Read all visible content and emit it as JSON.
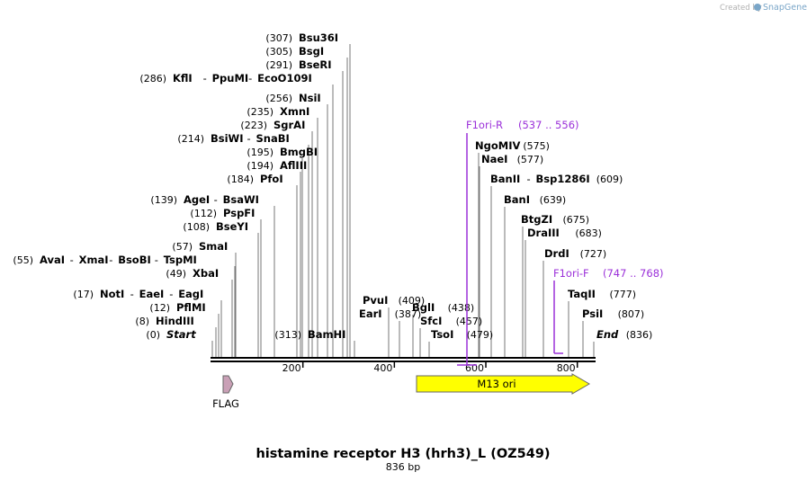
{
  "credit": {
    "prefix": "Created by",
    "brand": "SnapGene"
  },
  "title": "histamine receptor H3 (hrh3)_L (OZ549)",
  "subtitle": "836 bp",
  "sequence_length": 836,
  "axis_ticks": [
    200,
    400,
    600,
    800
  ],
  "colors": {
    "backbone": "#000000",
    "feature_m13": "#ffff00",
    "feature_flag": "#c9a0b6",
    "primer": "#9b30d9",
    "feature_stroke": "#666666"
  },
  "enzymes_left": [
    {
      "pos": 307,
      "parts": [
        "Bsu36I"
      ]
    },
    {
      "pos": 305,
      "parts": [
        "BsgI"
      ]
    },
    {
      "pos": 291,
      "parts": [
        "BseRI"
      ]
    },
    {
      "pos": 286,
      "parts": [
        "KflI",
        "PpuMI",
        "EcoO109I"
      ]
    },
    {
      "pos": 256,
      "parts": [
        "NsiI"
      ]
    },
    {
      "pos": 235,
      "parts": [
        "XmnI"
      ]
    },
    {
      "pos": 223,
      "parts": [
        "SgrAI"
      ]
    },
    {
      "pos": 214,
      "parts": [
        "BsiWI",
        "SnaBI"
      ]
    },
    {
      "pos": 195,
      "parts": [
        "BmgBI"
      ]
    },
    {
      "pos": 194,
      "parts": [
        "AflIII"
      ]
    },
    {
      "pos": 184,
      "parts": [
        "PfoI"
      ]
    },
    {
      "pos": 139,
      "parts": [
        "AgeI",
        "BsaWI"
      ]
    },
    {
      "pos": 112,
      "parts": [
        "PspFI"
      ]
    },
    {
      "pos": 108,
      "parts": [
        "BseYI"
      ]
    },
    {
      "pos": 57,
      "parts": [
        "SmaI"
      ]
    },
    {
      "pos": 55,
      "parts": [
        "AvaI",
        "XmaI",
        "BsoBI",
        "TspMI"
      ]
    },
    {
      "pos": 49,
      "parts": [
        "XbaI"
      ]
    },
    {
      "pos": 17,
      "parts": [
        "NotI",
        "EaeI",
        "EagI"
      ]
    },
    {
      "pos": 12,
      "parts": [
        "PflMI"
      ]
    },
    {
      "pos": 8,
      "parts": [
        "HindIII"
      ]
    },
    {
      "pos": 0,
      "parts": [
        "Start"
      ],
      "italic": true
    },
    {
      "pos": 313,
      "parts": [
        "BamHI"
      ]
    }
  ],
  "enzymes_right": [
    {
      "pos": 575,
      "parts": [
        "NgoMIV"
      ]
    },
    {
      "pos": 577,
      "parts": [
        "NaeI"
      ]
    },
    {
      "pos": 609,
      "parts": [
        "BanII",
        "Bsp1286I"
      ]
    },
    {
      "pos": 639,
      "parts": [
        "BanI"
      ]
    },
    {
      "pos": 675,
      "parts": [
        "BtgZI"
      ]
    },
    {
      "pos": 683,
      "parts": [
        "DraIII"
      ]
    },
    {
      "pos": 727,
      "parts": [
        "DrdI"
      ]
    },
    {
      "pos": 777,
      "parts": [
        "TaqII"
      ]
    },
    {
      "pos": 807,
      "parts": [
        "PsiI"
      ]
    },
    {
      "pos": 836,
      "parts": [
        "End"
      ],
      "italic": true
    },
    {
      "pos": 409,
      "parts": [
        "PvuI"
      ]
    },
    {
      "pos": 387,
      "parts": [
        "EarI"
      ]
    },
    {
      "pos": 438,
      "parts": [
        "BglI"
      ]
    },
    {
      "pos": 457,
      "parts": [
        "SfcI"
      ]
    },
    {
      "pos": 479,
      "parts": [
        "TsoI"
      ]
    }
  ],
  "primers": [
    {
      "name": "F1ori-R",
      "range": "(537 .. 556)",
      "start": 537,
      "end": 556
    },
    {
      "name": "F1ori-F",
      "range": "(747 .. 768)",
      "start": 747,
      "end": 768
    }
  ],
  "features": [
    {
      "name": "M13 ori",
      "start": 450,
      "end": 855
    },
    {
      "name": "FLAG",
      "start": 30,
      "end": 54
    }
  ]
}
